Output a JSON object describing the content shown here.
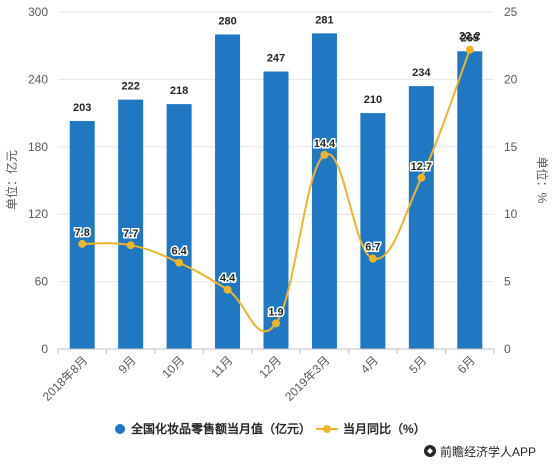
{
  "chart_data": {
    "type": "bar+line",
    "categories": [
      "2018年8月",
      "9月",
      "10月",
      "11月",
      "12月",
      "2019年3月",
      "4月",
      "5月",
      "6月"
    ],
    "series": [
      {
        "name": "全国化妆品零售额当月值（亿元）",
        "type": "bar",
        "axis": "left",
        "values": [
          203,
          222,
          218,
          280,
          247,
          281,
          210,
          234,
          265
        ]
      },
      {
        "name": "当月同比（%）",
        "type": "line",
        "axis": "right",
        "values": [
          7.8,
          7.7,
          6.4,
          4.4,
          1.9,
          14.4,
          6.7,
          12.7,
          22.2
        ]
      }
    ],
    "y_left": {
      "label": "单位：亿元",
      "ticks": [
        0,
        60,
        120,
        180,
        240,
        300
      ],
      "range": [
        0,
        300
      ]
    },
    "y_right": {
      "label": "单位：%",
      "ticks": [
        0,
        5,
        10,
        15,
        20,
        25
      ],
      "range": [
        0,
        25
      ]
    },
    "colors": {
      "bar": "#1f78c1",
      "line": "#f0b429",
      "text": "#262626",
      "axis": "#595959",
      "grid": "#e6e6e6"
    },
    "legend_position": "bottom",
    "grid": true
  },
  "source": "前瞻经济学人APP"
}
